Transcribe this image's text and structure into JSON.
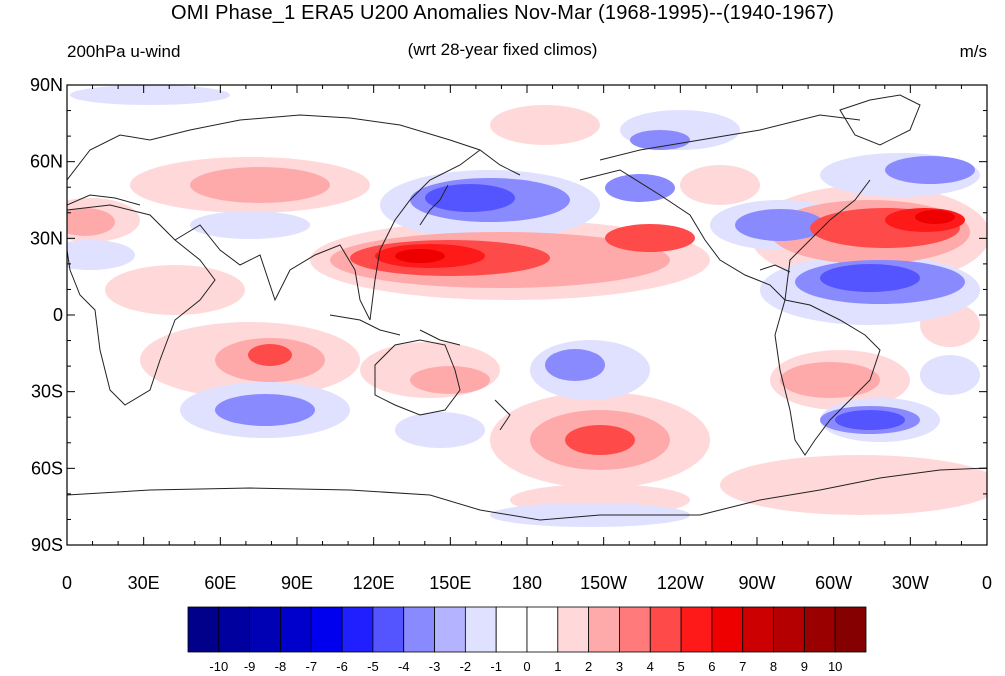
{
  "title": "OMI Phase_1 ERA5 U200 Anomalies Nov-Mar (1968-1995)--(1940-1967)",
  "subtitle_left": "200hPa u-wind",
  "subtitle_center": "(wrt 28-year fixed climos)",
  "units": "m/s",
  "map": {
    "lon_ticks": [
      "0",
      "30E",
      "60E",
      "90E",
      "120E",
      "150E",
      "180",
      "150W",
      "120W",
      "90W",
      "60W",
      "30W",
      "0"
    ],
    "lat_ticks": [
      "90N",
      "60N",
      "30N",
      "0",
      "30S",
      "60S",
      "90S"
    ]
  },
  "colorbar": {
    "labels": [
      "-10",
      "-9",
      "-8",
      "-7",
      "-6",
      "-5",
      "-4",
      "-3",
      "-2",
      "-1",
      "0",
      "1",
      "2",
      "3",
      "4",
      "5",
      "6",
      "7",
      "8",
      "9",
      "10"
    ],
    "colors": [
      "#00008b",
      "#00009f",
      "#0000b4",
      "#0000cc",
      "#0000ee",
      "#1f1fff",
      "#5555ff",
      "#8a8aff",
      "#b3b3ff",
      "#e0e0ff",
      "#ffffff",
      "#ffffff",
      "#ffd9d9",
      "#ffaaaa",
      "#ff7a7a",
      "#ff4a4a",
      "#ff1a1a",
      "#ee0000",
      "#cc0000",
      "#b40000",
      "#9a0000",
      "#850000"
    ]
  }
}
